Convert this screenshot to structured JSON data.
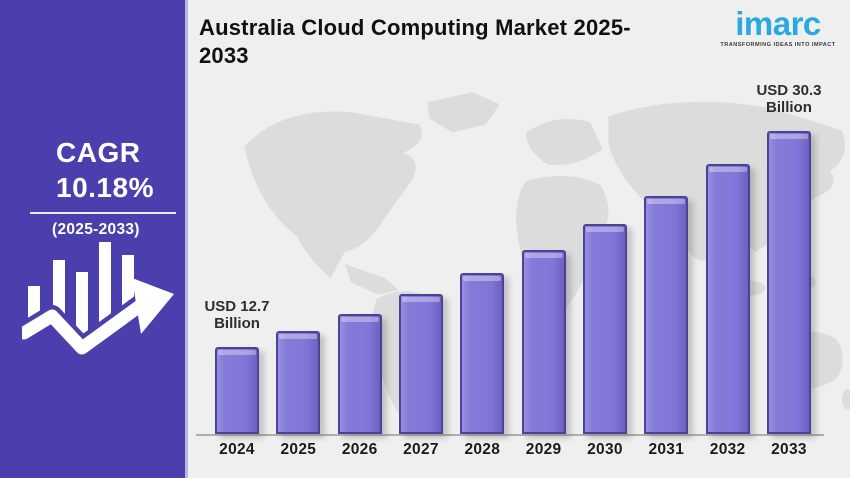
{
  "sidebar": {
    "bg_color": "#4b3fae",
    "cagr_label": "CAGR",
    "cagr_value": "10.18%",
    "cagr_period": "(2025-2033)",
    "icon": "bar-chart-growth-arrow-icon"
  },
  "header": {
    "title": "Australia Cloud Computing Market 2025-2033"
  },
  "logo": {
    "name": "imarc",
    "tagline": "TRANSFORMING IDEAS INTO IMPACT",
    "brand_color": "#2aa9e0"
  },
  "chart_data": {
    "type": "bar",
    "title": "Australia Cloud Computing Market 2025-2033",
    "unit": "USD Billion",
    "categories": [
      "2024",
      "2025",
      "2026",
      "2027",
      "2028",
      "2029",
      "2030",
      "2031",
      "2032",
      "2033"
    ],
    "values": [
      12.7,
      14.0,
      15.4,
      17.0,
      18.7,
      20.6,
      22.7,
      25.0,
      27.6,
      30.3
    ],
    "annotations": [
      {
        "index": 0,
        "line1": "USD 12.7",
        "line2": "Billion"
      },
      {
        "index": 9,
        "line1": "USD 30.3",
        "line2": "Billion"
      }
    ],
    "xlabel": "",
    "ylabel": "",
    "legend": false,
    "grid": false,
    "axis_line": true,
    "bar_color": "#8076d7",
    "bar_border_color": "#4e4392",
    "background": "world-map-silhouette",
    "map_color": "#dcdcdc",
    "panel_color": "#f0efef"
  }
}
